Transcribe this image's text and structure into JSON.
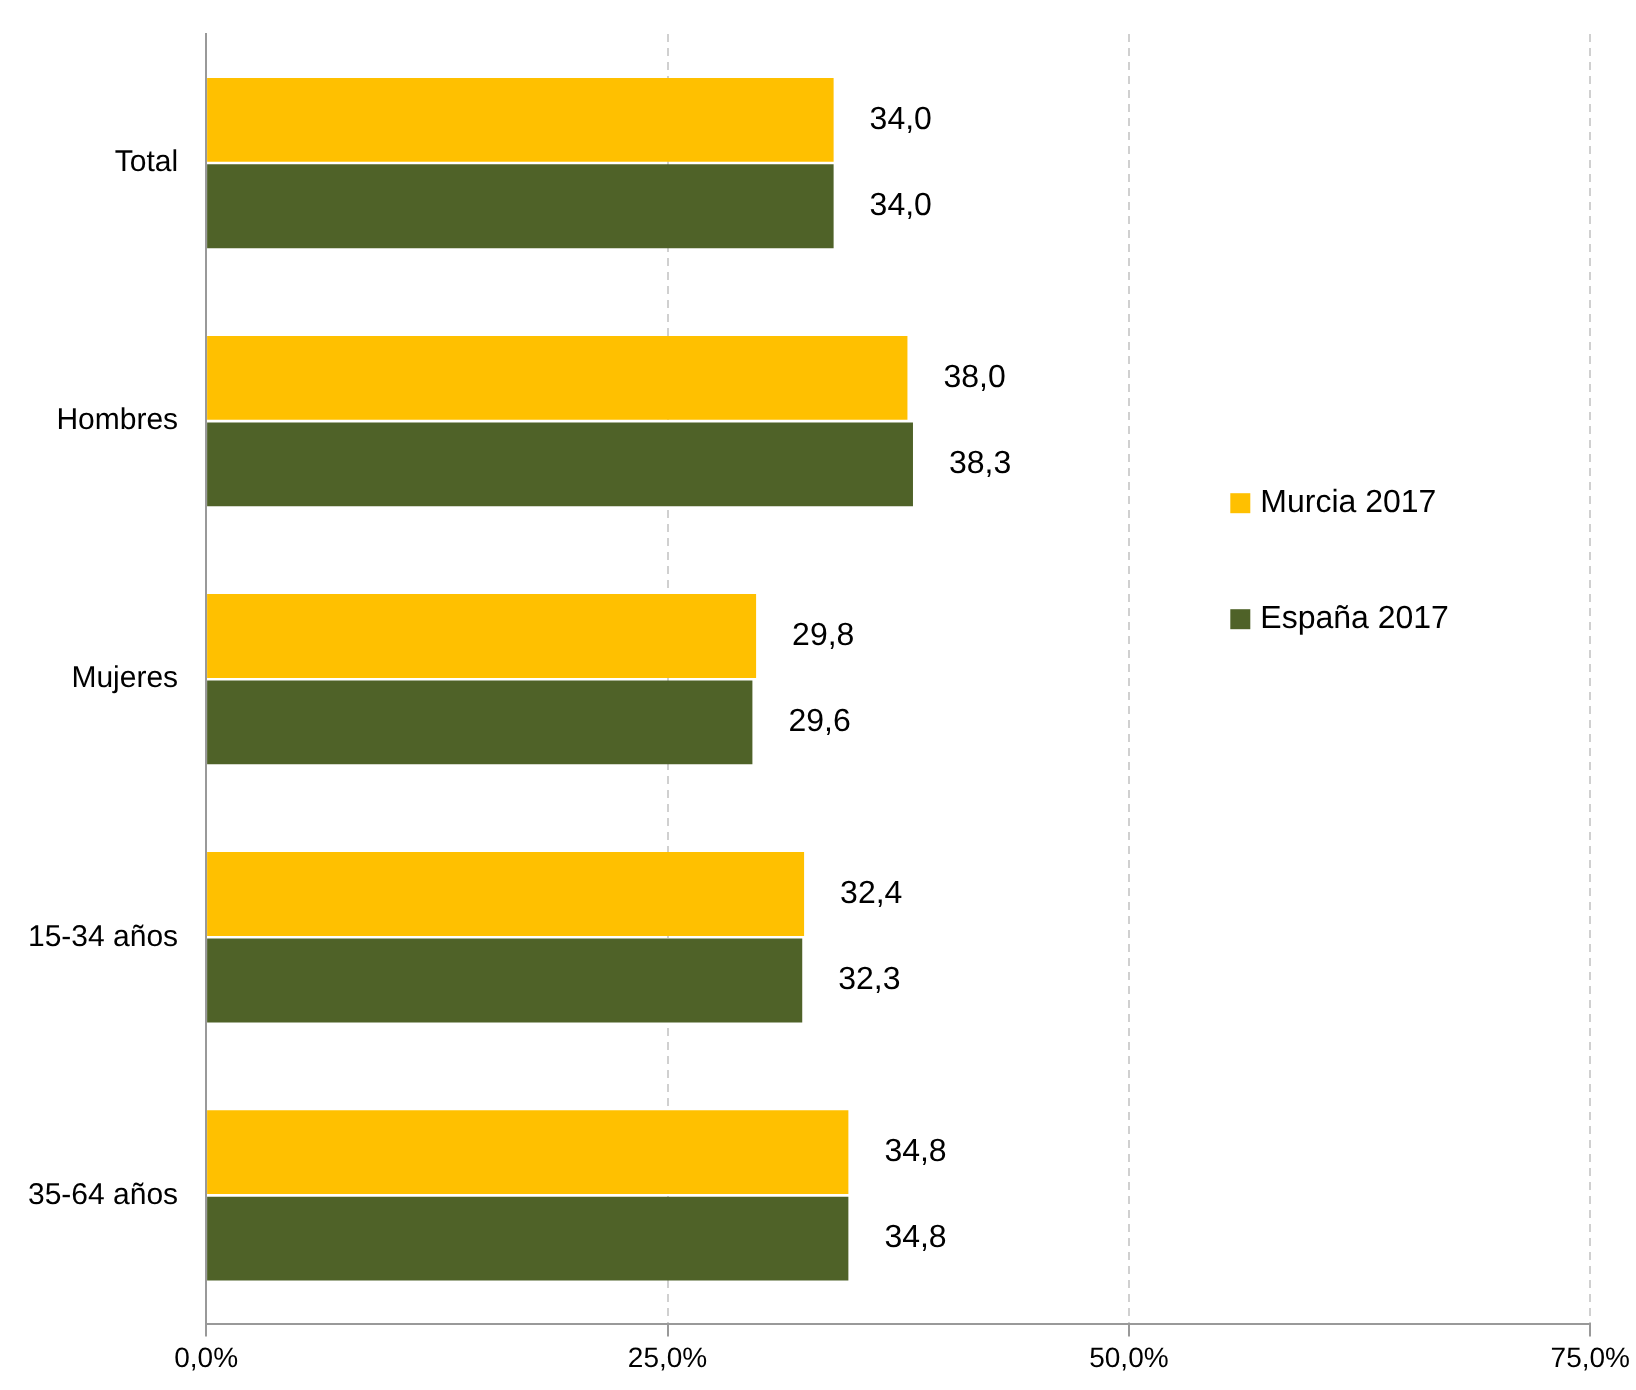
{
  "chart_data": {
    "type": "bar",
    "orientation": "horizontal",
    "categories": [
      "Total",
      "Hombres",
      "Mujeres",
      "15-34 años",
      "35-64 años"
    ],
    "series": [
      {
        "name": "Murcia 2017",
        "color": "#ffc000",
        "values": [
          34.0,
          38.0,
          29.8,
          32.4,
          34.8
        ],
        "value_labels": [
          "34,0",
          "38,0",
          "29,8",
          "32,4",
          "34,8"
        ]
      },
      {
        "name": "España 2017",
        "color": "#4f6228",
        "values": [
          34.0,
          38.3,
          29.6,
          32.3,
          34.8
        ],
        "value_labels": [
          "34,0",
          "38,3",
          "29,6",
          "32,3",
          "34,8"
        ]
      }
    ],
    "xlim": [
      0,
      75
    ],
    "xticks": [
      {
        "value": 0,
        "label": "0,0%"
      },
      {
        "value": 25,
        "label": "25,0%"
      },
      {
        "value": 50,
        "label": "50,0%"
      },
      {
        "value": 75,
        "label": "75,0%"
      }
    ],
    "grid": "x",
    "legend": "right"
  }
}
